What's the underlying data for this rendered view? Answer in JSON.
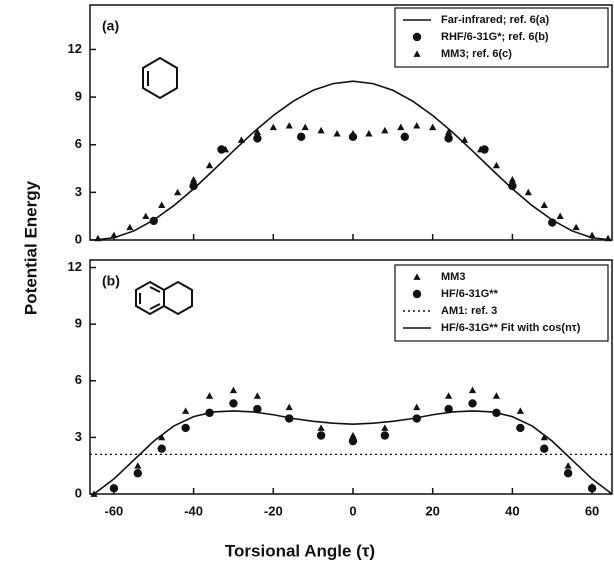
{
  "ylabel": "Potential Energy",
  "xlabel": "Torsional Angle (τ)",
  "chart_data": [
    {
      "type": "line",
      "panel_label": "(a)",
      "xlim": [
        -66,
        65
      ],
      "ylim": [
        0,
        14.8
      ],
      "xticks": [
        -60,
        -40,
        -20,
        0,
        20,
        40,
        60
      ],
      "yticks": [
        0,
        3,
        6,
        9,
        12
      ],
      "series": [
        {
          "name": "Far-infrared; ref. 6(a)",
          "color": "#111111",
          "marker": "line",
          "x": [
            -65,
            -60,
            -55,
            -50,
            -45,
            -40,
            -35,
            -30,
            -25,
            -20,
            -15,
            -10,
            -5,
            0,
            5,
            10,
            15,
            20,
            25,
            30,
            35,
            40,
            45,
            50,
            55,
            60,
            65
          ],
          "values": [
            0,
            0.14,
            0.57,
            1.26,
            2.16,
            3.22,
            4.4,
            5.61,
            6.78,
            7.84,
            8.74,
            9.43,
            9.85,
            10,
            9.85,
            9.43,
            8.74,
            7.84,
            6.78,
            5.61,
            4.4,
            3.22,
            2.16,
            1.26,
            0.57,
            0.14,
            0
          ]
        },
        {
          "name": "RHF/6-31G*; ref. 6(b)",
          "color": "#111111",
          "marker": "circle",
          "x": [
            -50,
            -40,
            -33,
            -24,
            -13,
            0,
            13,
            24,
            33,
            40,
            50
          ],
          "values": [
            1.2,
            3.4,
            5.7,
            6.4,
            6.5,
            6.5,
            6.5,
            6.4,
            5.7,
            3.4,
            1.1
          ]
        },
        {
          "name": "MM3; ref. 6(c)",
          "color": "#111111",
          "marker": "triangle",
          "x": [
            -64,
            -60,
            -56,
            -52,
            -48,
            -44,
            -40,
            -36,
            -32,
            -28,
            -24,
            -20,
            -16,
            -12,
            -8,
            -4,
            0,
            4,
            8,
            12,
            16,
            20,
            24,
            28,
            32,
            36,
            40,
            44,
            48,
            52,
            56,
            60,
            64
          ],
          "values": [
            0.1,
            0.3,
            0.8,
            1.5,
            2.2,
            3.0,
            3.8,
            4.7,
            5.7,
            6.3,
            6.8,
            7.1,
            7.2,
            7.1,
            6.9,
            6.7,
            6.7,
            6.7,
            6.9,
            7.1,
            7.2,
            7.1,
            6.8,
            6.3,
            5.7,
            4.7,
            3.8,
            3.0,
            2.2,
            1.5,
            0.8,
            0.3,
            0.1
          ]
        }
      ]
    },
    {
      "type": "line",
      "panel_label": "(b)",
      "xlim": [
        -66,
        65
      ],
      "ylim": [
        0,
        12.4
      ],
      "xticks": [
        -60,
        -40,
        -20,
        0,
        20,
        40,
        60
      ],
      "yticks": [
        0,
        3,
        6,
        9,
        12
      ],
      "series": [
        {
          "name": "MM3",
          "color": "#111111",
          "marker": "triangle",
          "x": [
            -65,
            -54,
            -48,
            -42,
            -36,
            -30,
            -24,
            -16,
            -8,
            0,
            8,
            16,
            24,
            30,
            36,
            42,
            48,
            54,
            60
          ],
          "values": [
            0,
            1.5,
            3.0,
            4.4,
            5.2,
            5.5,
            5.2,
            4.6,
            3.5,
            3.1,
            3.5,
            4.6,
            5.2,
            5.5,
            5.2,
            4.4,
            3.0,
            1.5,
            0.4
          ]
        },
        {
          "name": "HF/6-31G**",
          "color": "#111111",
          "marker": "circle",
          "x": [
            -60,
            -54,
            -48,
            -42,
            -36,
            -30,
            -24,
            -16,
            -8,
            0,
            8,
            16,
            24,
            30,
            36,
            42,
            48,
            54,
            60
          ],
          "values": [
            0.3,
            1.1,
            2.4,
            3.5,
            4.3,
            4.8,
            4.5,
            4.0,
            3.1,
            2.8,
            3.1,
            4.0,
            4.5,
            4.8,
            4.3,
            3.5,
            2.4,
            1.1,
            0.3
          ]
        },
        {
          "name": "AM1: ref. 3",
          "color": "#111111",
          "marker": "hline",
          "values": [
            2.1
          ]
        },
        {
          "name": "HF/6-31G** Fit with cos(nτ)",
          "color": "#111111",
          "marker": "line",
          "x": [
            -65,
            -60,
            -55,
            -50,
            -45,
            -40,
            -35,
            -30,
            -25,
            -20,
            -15,
            -10,
            -5,
            0,
            5,
            10,
            15,
            20,
            25,
            30,
            35,
            40,
            45,
            50,
            55,
            60,
            65
          ],
          "values": [
            0,
            0.8,
            1.8,
            2.8,
            3.6,
            4.1,
            4.35,
            4.4,
            4.35,
            4.2,
            4.0,
            3.85,
            3.75,
            3.7,
            3.75,
            3.85,
            4.0,
            4.2,
            4.35,
            4.4,
            4.35,
            4.1,
            3.6,
            2.8,
            1.8,
            0.8,
            0
          ]
        }
      ]
    }
  ]
}
